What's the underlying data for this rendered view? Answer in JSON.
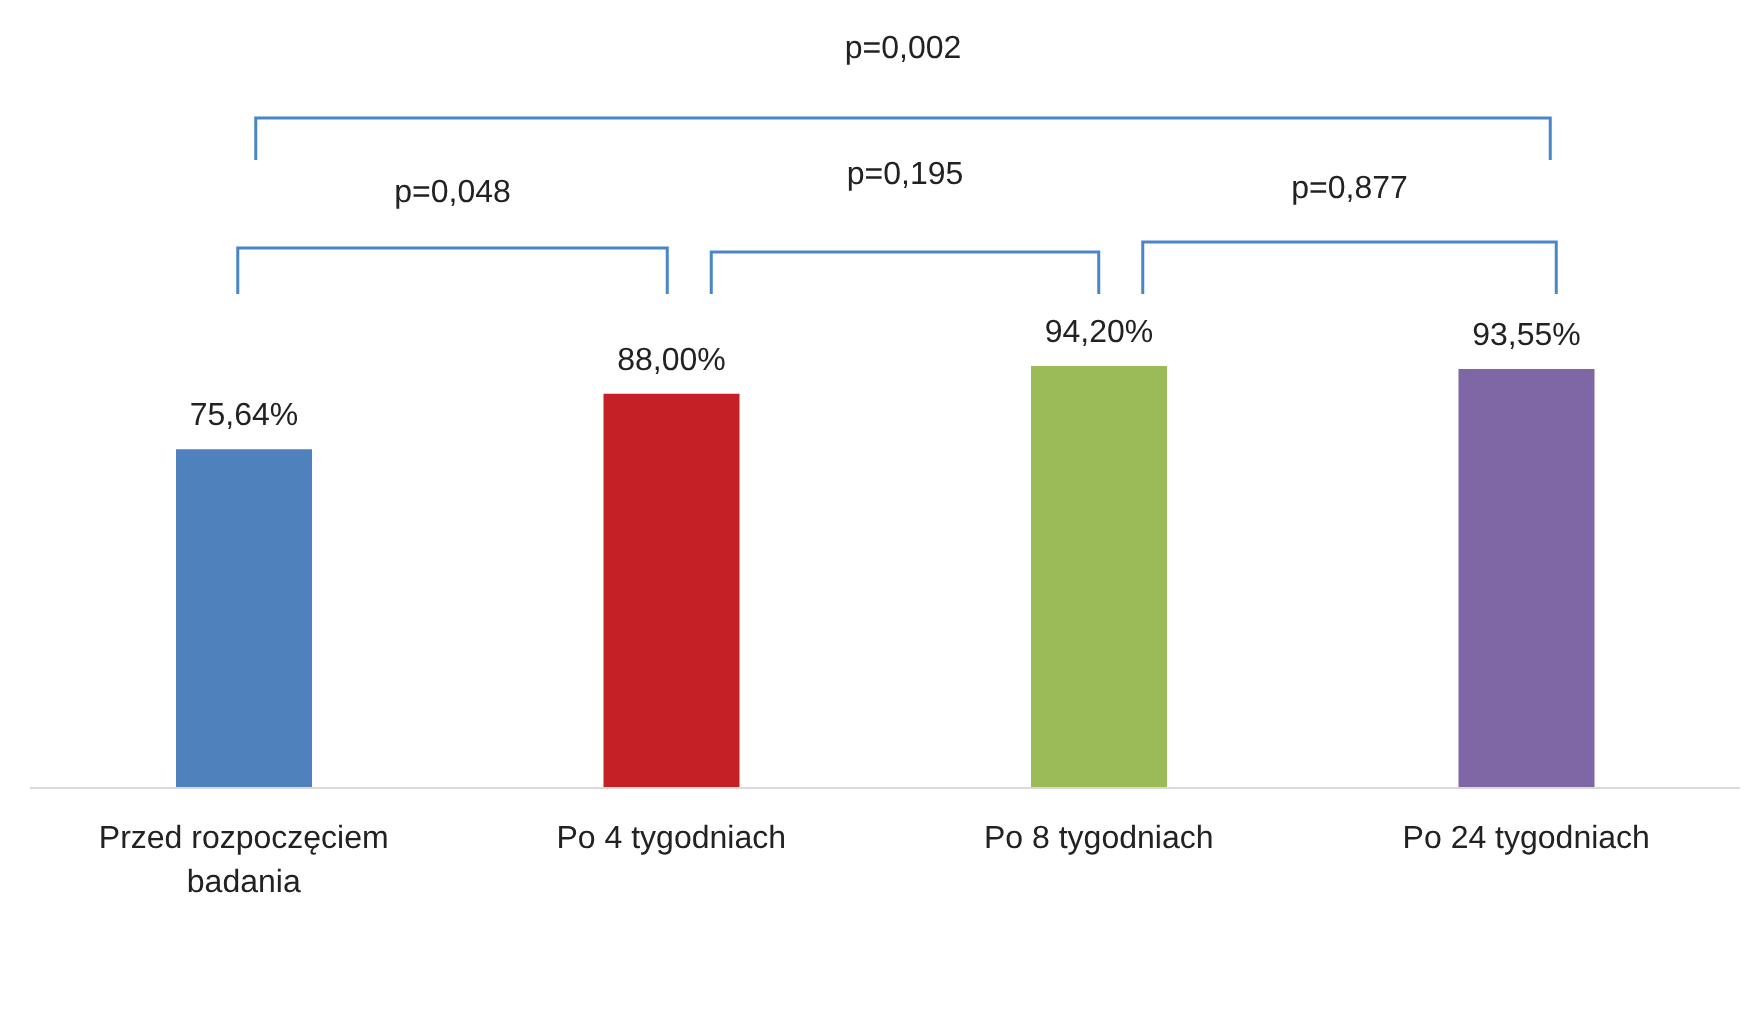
{
  "chart_data": {
    "type": "bar",
    "categories": [
      "Przed rozpoczęciem badania",
      "Po 4 tygodniach",
      "Po 8 tygodniach",
      "Po 24 tygodniach"
    ],
    "values": [
      75.64,
      88.0,
      94.2,
      93.55
    ],
    "colors": [
      "#4f81bd",
      "#c42026",
      "#9bbb59",
      "#7f67a6"
    ],
    "value_labels": [
      "75,64%",
      "88,00%",
      "94,20%",
      "93,55%"
    ],
    "annotations": [
      "p=0,048",
      "p=0,195",
      "p=0,877",
      "p=0,002"
    ]
  }
}
